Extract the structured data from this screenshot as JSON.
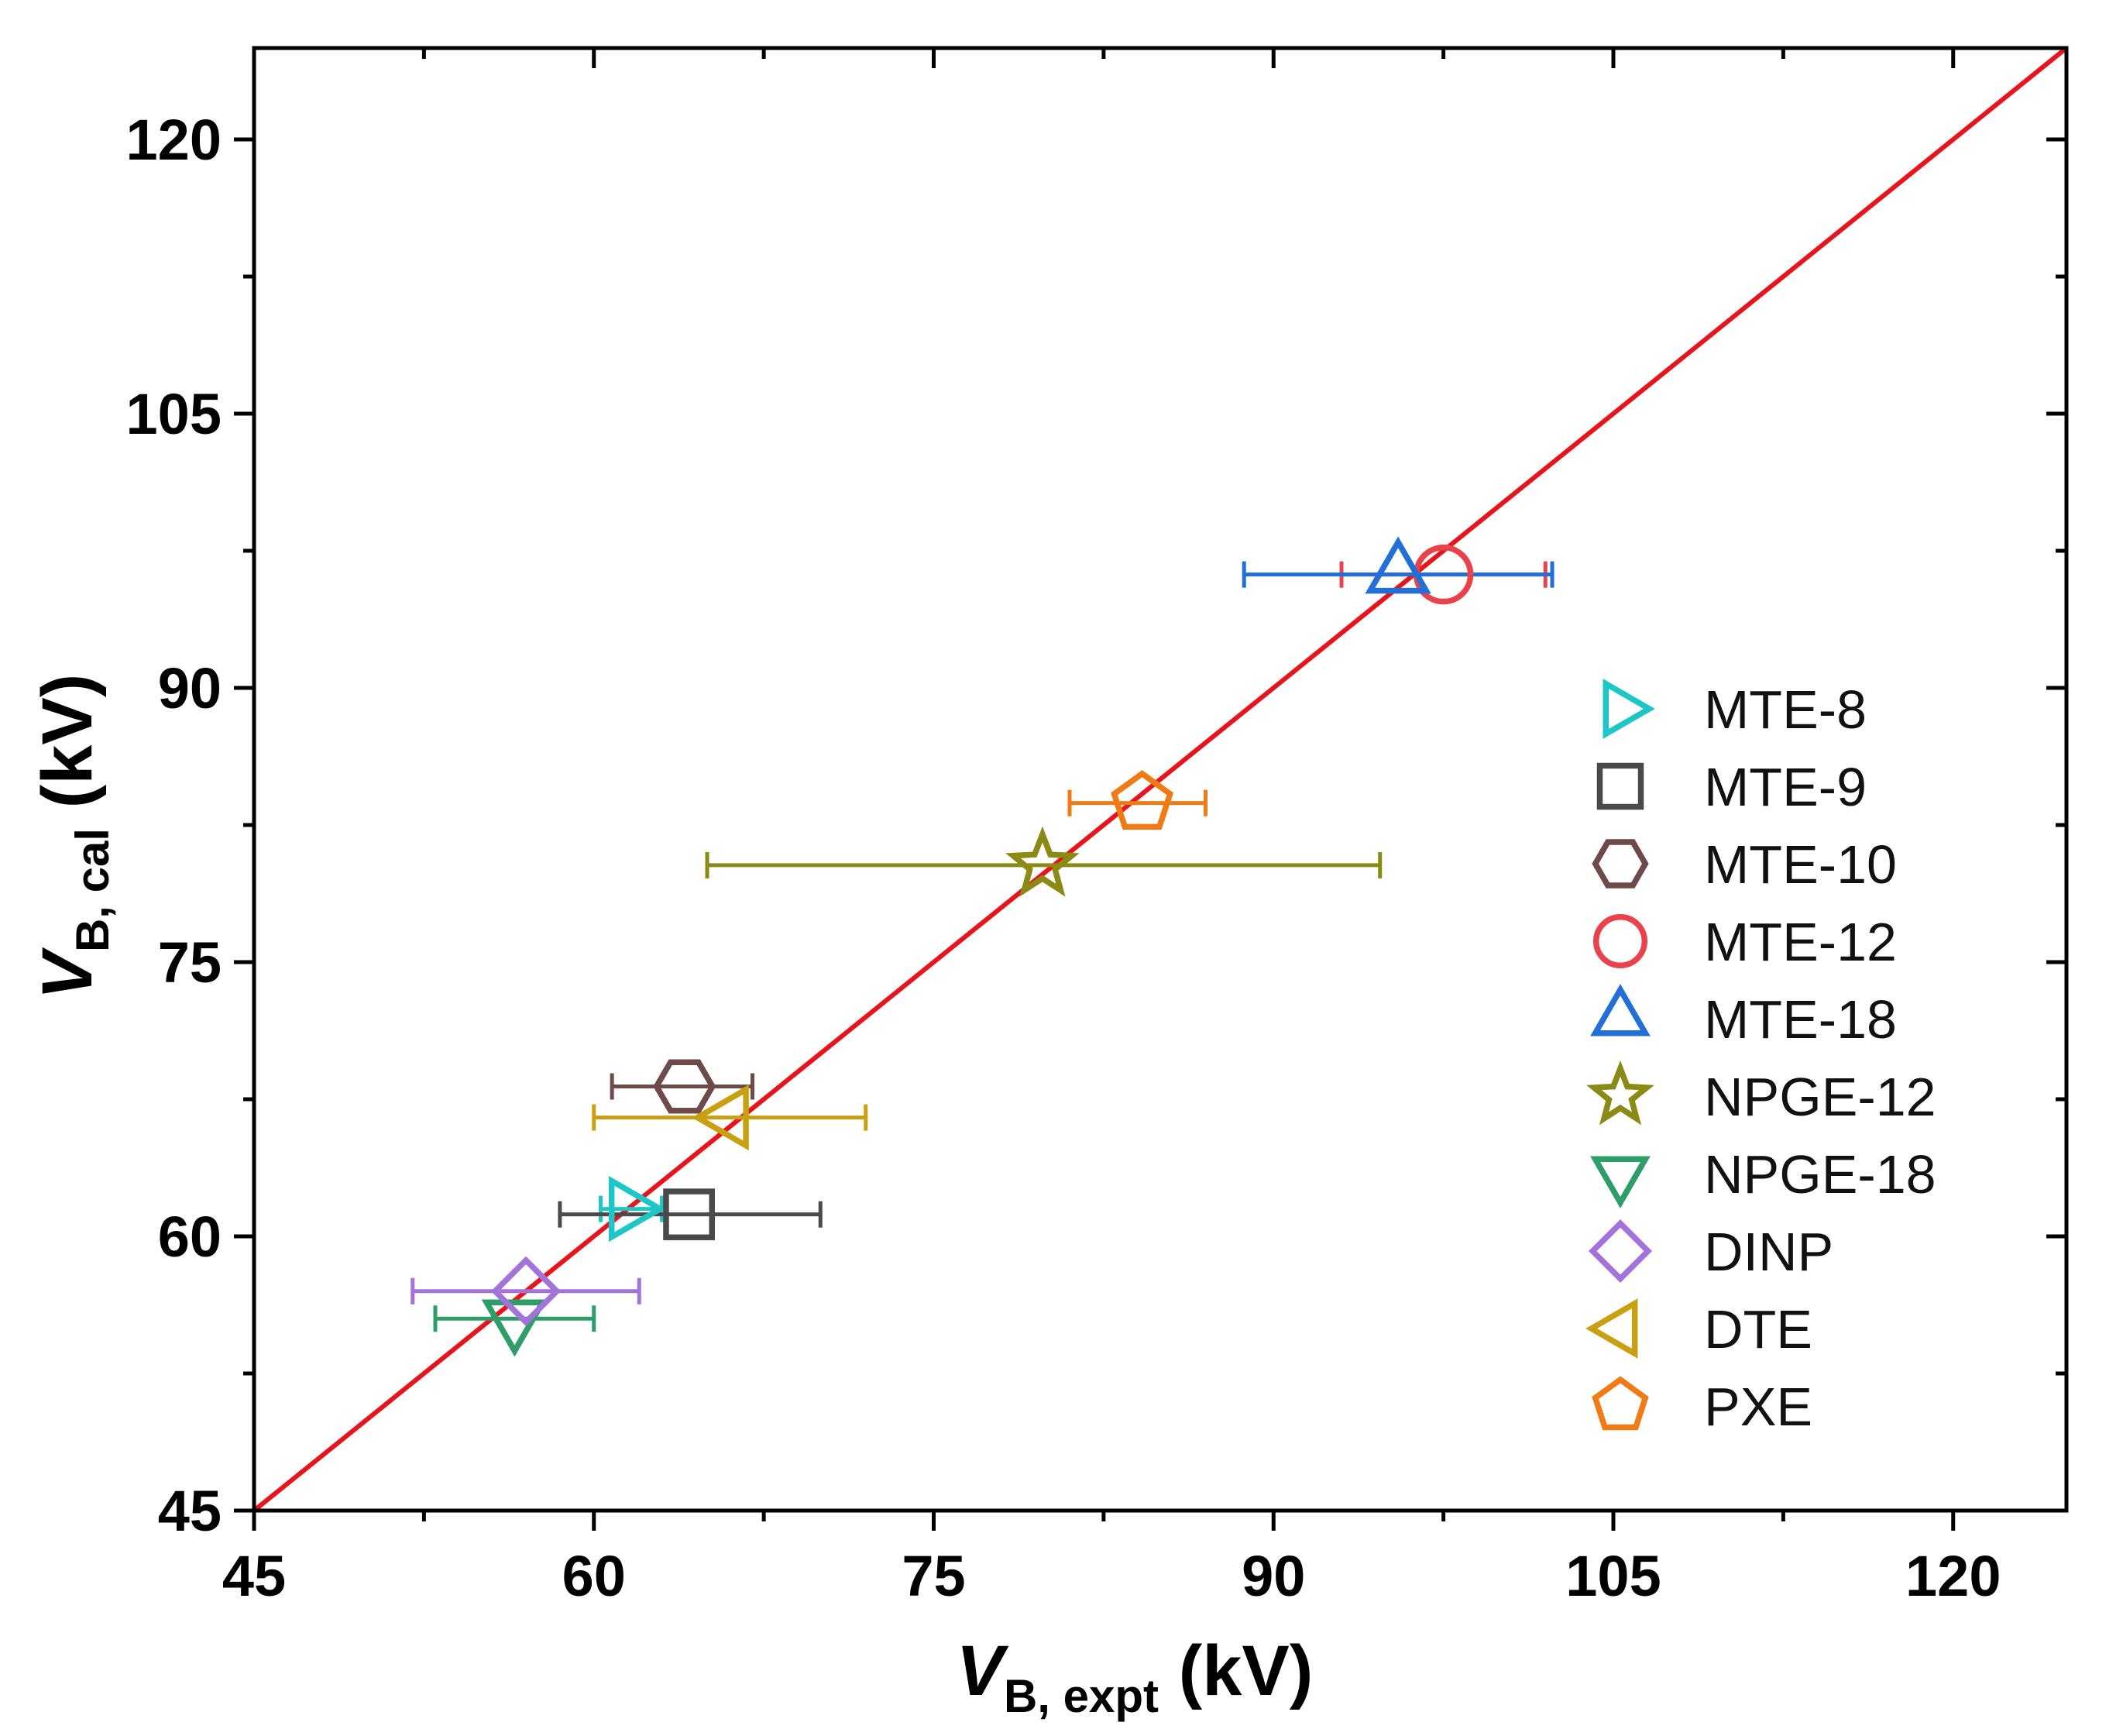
{
  "chart_data": {
    "type": "scatter",
    "title": "",
    "xlabel": {
      "main": "V",
      "sub": "B, expt",
      "unit": " (kV)"
    },
    "ylabel": {
      "main": "V",
      "sub": "B, cal",
      "unit": " (kV)"
    },
    "xlim": [
      45,
      125
    ],
    "ylim": [
      45,
      125
    ],
    "xticks": [
      45,
      60,
      75,
      90,
      105,
      120
    ],
    "yticks": [
      45,
      60,
      75,
      90,
      105,
      120
    ],
    "xtick_labels": [
      "45",
      "60",
      "75",
      "90",
      "105",
      "120"
    ],
    "ytick_labels": [
      "45",
      "60",
      "75",
      "90",
      "105",
      "120"
    ],
    "minor_step": 7.5,
    "grid": false,
    "legend_position": "right",
    "reference_line": {
      "from": [
        45,
        45
      ],
      "to": [
        125,
        125
      ],
      "color": "#e8141b"
    },
    "series": [
      {
        "name": "MTE-8",
        "marker": "triangle-right",
        "color": "#1fc6c6",
        "x": 61.5,
        "y": 61.5,
        "xerr": [
          60.3,
          63.0
        ]
      },
      {
        "name": "MTE-9",
        "marker": "square",
        "color": "#4a4a4a",
        "x": 64.2,
        "y": 61.2,
        "xerr": [
          58.5,
          70.0
        ]
      },
      {
        "name": "MTE-10",
        "marker": "hexagon",
        "color": "#6e4a48",
        "x": 64.0,
        "y": 68.2,
        "xerr": [
          60.8,
          67.0
        ]
      },
      {
        "name": "MTE-12",
        "marker": "circle",
        "color": "#e8434a",
        "x": 97.5,
        "y": 96.2,
        "xerr": [
          93.0,
          102.0
        ]
      },
      {
        "name": "MTE-18",
        "marker": "triangle-up",
        "color": "#2270d6",
        "x": 95.5,
        "y": 96.2,
        "xerr": [
          88.7,
          102.3
        ]
      },
      {
        "name": "NPGE-12",
        "marker": "star",
        "color": "#8a8a14",
        "x": 79.8,
        "y": 80.3,
        "xerr": [
          65.0,
          94.7
        ]
      },
      {
        "name": "NPGE-18",
        "marker": "triangle-down",
        "color": "#2e9e68",
        "x": 56.5,
        "y": 55.5,
        "xerr": [
          53.0,
          60.0
        ]
      },
      {
        "name": "DINP",
        "marker": "diamond",
        "color": "#a373db",
        "x": 57.0,
        "y": 57.0,
        "xerr": [
          52.0,
          62.0
        ]
      },
      {
        "name": "DTE",
        "marker": "triangle-left",
        "color": "#c9a012",
        "x": 66.0,
        "y": 66.5,
        "xerr": [
          60.0,
          72.0
        ]
      },
      {
        "name": "PXE",
        "marker": "pentagon",
        "color": "#f07a14",
        "x": 84.2,
        "y": 83.7,
        "xerr": [
          81.0,
          87.0
        ]
      }
    ]
  }
}
